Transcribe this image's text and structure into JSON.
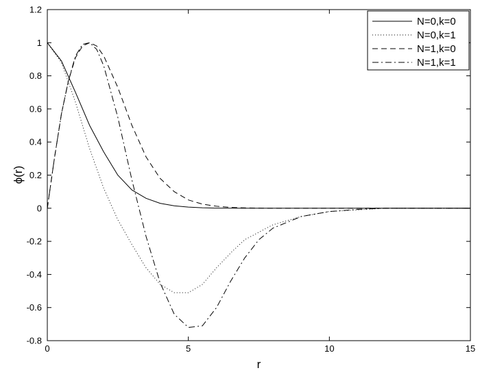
{
  "chart_data": {
    "type": "line",
    "title": "",
    "xlabel": "r",
    "ylabel": "ϕ(r)",
    "xlim": [
      0,
      15
    ],
    "ylim": [
      -0.8,
      1.2
    ],
    "xticks": [
      0,
      5,
      10,
      15
    ],
    "yticks": [
      -0.8,
      -0.6,
      -0.4,
      -0.2,
      0,
      0.2,
      0.4,
      0.6,
      0.8,
      1,
      1.2
    ],
    "grid": false,
    "legend_position": "top-right",
    "series": [
      {
        "name": "N=0,k=0",
        "style": "solid",
        "x": [
          0,
          0.5,
          1,
          1.5,
          2,
          2.5,
          3,
          3.5,
          4,
          4.5,
          5,
          5.5,
          6,
          7,
          8,
          9,
          10,
          12,
          15
        ],
        "y": [
          1,
          0.89,
          0.7,
          0.5,
          0.34,
          0.2,
          0.11,
          0.06,
          0.03,
          0.015,
          0.007,
          0.003,
          0.001,
          0,
          0,
          0,
          0,
          0,
          0
        ]
      },
      {
        "name": "N=0,k=1",
        "style": "dotted",
        "x": [
          0,
          0.5,
          1,
          1.5,
          2,
          2.5,
          3,
          3.5,
          4,
          4.5,
          5,
          5.5,
          6,
          6.5,
          7,
          8,
          9,
          10,
          11,
          12,
          15
        ],
        "y": [
          1,
          0.88,
          0.64,
          0.36,
          0.12,
          -0.07,
          -0.22,
          -0.36,
          -0.46,
          -0.51,
          -0.51,
          -0.46,
          -0.36,
          -0.27,
          -0.19,
          -0.1,
          -0.05,
          -0.02,
          -0.01,
          0,
          0
        ]
      },
      {
        "name": "N=1,k=0",
        "style": "dashed",
        "x": [
          0,
          0.25,
          0.5,
          0.75,
          1,
          1.25,
          1.5,
          1.75,
          2,
          2.5,
          3,
          3.5,
          4,
          4.5,
          5,
          5.5,
          6,
          6.5,
          7,
          8,
          9,
          10,
          15
        ],
        "y": [
          0,
          0.3,
          0.57,
          0.77,
          0.91,
          0.98,
          1,
          0.98,
          0.92,
          0.73,
          0.5,
          0.31,
          0.18,
          0.1,
          0.05,
          0.025,
          0.012,
          0.005,
          0.002,
          0,
          0,
          0,
          0
        ]
      },
      {
        "name": "N=1,k=1",
        "style": "dashdot",
        "x": [
          0,
          0.25,
          0.5,
          0.75,
          1,
          1.25,
          1.5,
          1.75,
          2,
          2.5,
          3,
          3.5,
          4,
          4.5,
          5,
          5.5,
          6,
          6.5,
          7,
          7.5,
          8,
          9,
          10,
          11,
          12,
          15
        ],
        "y": [
          0,
          0.3,
          0.57,
          0.77,
          0.92,
          0.99,
          1,
          0.96,
          0.86,
          0.55,
          0.17,
          -0.17,
          -0.45,
          -0.64,
          -0.72,
          -0.71,
          -0.6,
          -0.44,
          -0.3,
          -0.19,
          -0.12,
          -0.05,
          -0.02,
          -0.007,
          0,
          0
        ]
      }
    ]
  }
}
